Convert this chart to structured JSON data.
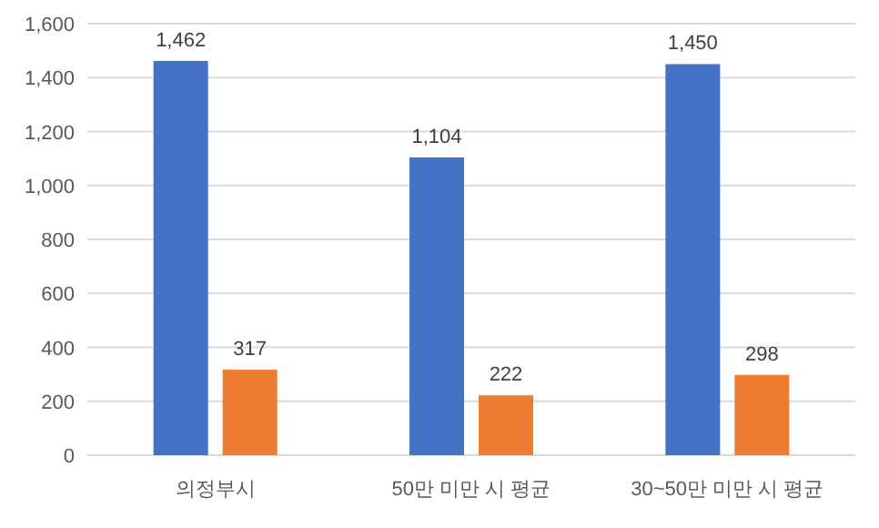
{
  "chart_data": {
    "type": "bar",
    "categories": [
      "의정부시",
      "50만 미만 시 평균",
      "30~50만 미만 시 평균"
    ],
    "series": [
      {
        "color": "#4472c4",
        "values": [
          1462,
          1104,
          1450
        ],
        "value_labels": [
          "1,462",
          "1,104",
          "1,450"
        ]
      },
      {
        "color": "#ed7d31",
        "values": [
          317,
          222,
          298
        ],
        "value_labels": [
          "317",
          "222",
          "298"
        ]
      }
    ],
    "ylim": [
      0,
      1600
    ],
    "yticks": [
      0,
      {
        "value": 200,
        "label": "200"
      },
      {
        "value": 400,
        "label": "400"
      },
      {
        "value": 600,
        "label": "600"
      },
      {
        "value": 800,
        "label": "800"
      },
      {
        "value": 1000,
        "label": "1,000"
      },
      {
        "value": 1200,
        "label": "1,200"
      },
      {
        "value": 1400,
        "label": "1,400"
      },
      {
        "value": 1600,
        "label": "1,600"
      }
    ],
    "grid": "y"
  }
}
